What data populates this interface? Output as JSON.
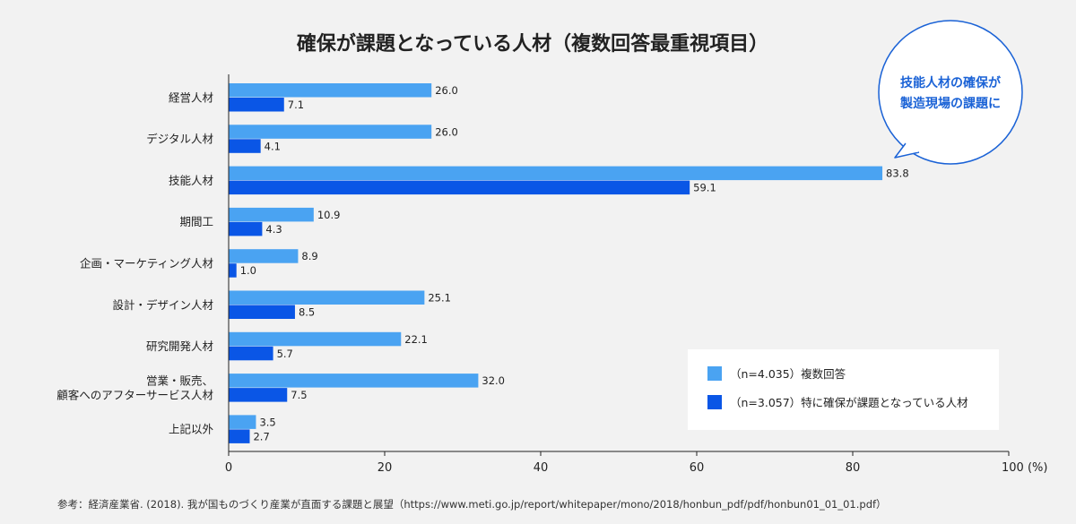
{
  "chart_data": {
    "type": "bar",
    "orientation": "horizontal",
    "title": "確保が課題となっている人材（複数回答最重視項目）",
    "categories": [
      [
        "経営人材"
      ],
      [
        "デジタル人材"
      ],
      [
        "技能人材"
      ],
      [
        "期間工"
      ],
      [
        "企画・マーケティング人材"
      ],
      [
        "設計・デザイン人材"
      ],
      [
        "研究開発人材"
      ],
      [
        "営業・販売、",
        "顧客へのアフターサービス人材"
      ],
      [
        "上記以外"
      ]
    ],
    "series": [
      {
        "name": "（n=4.035）複数回答",
        "color": "#4aa3f2",
        "values": [
          26.0,
          26.0,
          83.8,
          10.9,
          8.9,
          25.1,
          22.1,
          32.0,
          3.5
        ],
        "labels": [
          "26.0",
          "26.0",
          "83.8",
          "10.9",
          "8.9",
          "25.1",
          "22.1",
          "32.0",
          "3.5"
        ]
      },
      {
        "name": "（n=3.057）特に確保が課題となっている人材",
        "color": "#0a56e6",
        "values": [
          7.1,
          4.1,
          59.1,
          4.3,
          1.0,
          8.5,
          5.7,
          7.5,
          2.7
        ],
        "labels": [
          "7.1",
          "4.1",
          "59.1",
          "4.3",
          "1.0",
          "8.5",
          "5.7",
          "7.5",
          "2.7"
        ]
      }
    ],
    "xlim": [
      0,
      100
    ],
    "xticks": [
      "0",
      "20",
      "40",
      "60",
      "80"
    ],
    "xtick_last": "100 (%)",
    "xlabel": "",
    "ylabel": "",
    "grid": false,
    "legend": "bottom-right",
    "callout": [
      "技能人材の確保が",
      "製造現場の課題に"
    ],
    "source": "参考：経済産業省. (2018). 我が国ものづくり産業が直面する課題と展望（https://www.meti.go.jp/report/whitepaper/mono/2018/honbun_pdf/pdf/honbun01_01_01.pdf）"
  }
}
